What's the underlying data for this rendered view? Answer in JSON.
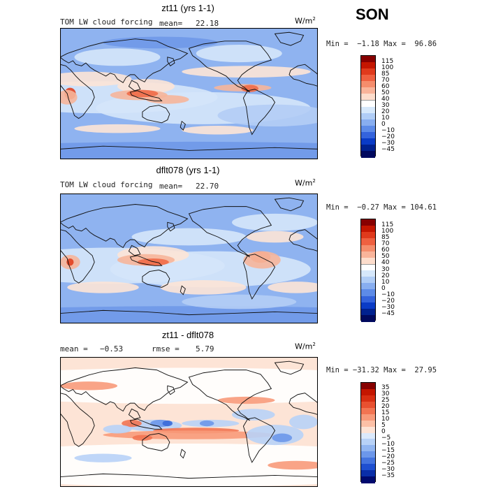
{
  "season": "SON",
  "panels": [
    {
      "title": "zt11 (yrs 1-1)",
      "left_label": "TOM LW cloud forcing",
      "stat1_label": "mean=",
      "stat1_value": "22.18",
      "stat2_label": "",
      "stat2_value": "",
      "units": "W/m",
      "units_sup": "2",
      "min_max": "Min =  −1.18 Max =  96.86",
      "colorbar_labels": [
        "115",
        "100",
        "85",
        "70",
        "60",
        "50",
        "40",
        "30",
        "20",
        "10",
        "0",
        "−10",
        "−20",
        "−30",
        "−45"
      ],
      "colors": [
        "#870000",
        "#c41600",
        "#e03a1c",
        "#ef6040",
        "#f58d6c",
        "#f9b49a",
        "#fdddcc",
        "#ffffff",
        "#d6e8fb",
        "#b0cdf6",
        "#88aef0",
        "#5d8be8",
        "#3463dc",
        "#0a3bc6",
        "#00218f",
        "#00095e"
      ]
    },
    {
      "title": "dflt078 (yrs 1-1)",
      "left_label": "TOM LW cloud forcing",
      "stat1_label": "mean=",
      "stat1_value": "22.70",
      "stat2_label": "",
      "stat2_value": "",
      "units": "W/m",
      "units_sup": "2",
      "min_max": "Min =  −0.27 Max = 104.61",
      "colorbar_labels": [
        "115",
        "100",
        "85",
        "70",
        "60",
        "50",
        "40",
        "30",
        "20",
        "10",
        "0",
        "−10",
        "−20",
        "−30",
        "−45"
      ],
      "colors": [
        "#870000",
        "#c41600",
        "#e03a1c",
        "#ef6040",
        "#f58d6c",
        "#f9b49a",
        "#fdddcc",
        "#ffffff",
        "#d6e8fb",
        "#b0cdf6",
        "#88aef0",
        "#5d8be8",
        "#3463dc",
        "#0a3bc6",
        "#00218f",
        "#00095e"
      ]
    },
    {
      "title": "zt11 - dflt078",
      "left_label": "",
      "stat1_label": "mean =",
      "stat1_value": "−0.53",
      "stat2_label": "rmse =",
      "stat2_value": "5.79",
      "units": "W/m",
      "units_sup": "2",
      "min_max": "Min = −31.32 Max =  27.95",
      "colorbar_labels": [
        "35",
        "30",
        "25",
        "20",
        "15",
        "10",
        "5",
        "0",
        "−5",
        "−10",
        "−15",
        "−20",
        "−25",
        "−30",
        "−35"
      ],
      "colors": [
        "#870000",
        "#c41600",
        "#d82e12",
        "#e85030",
        "#f27452",
        "#f89a7a",
        "#fcc0a6",
        "#fde3d5",
        "#dbe9fb",
        "#b8d2f7",
        "#92b6f1",
        "#6c97ea",
        "#4474df",
        "#1e4fd0",
        "#0a2ea8",
        "#000a6e"
      ]
    }
  ]
}
